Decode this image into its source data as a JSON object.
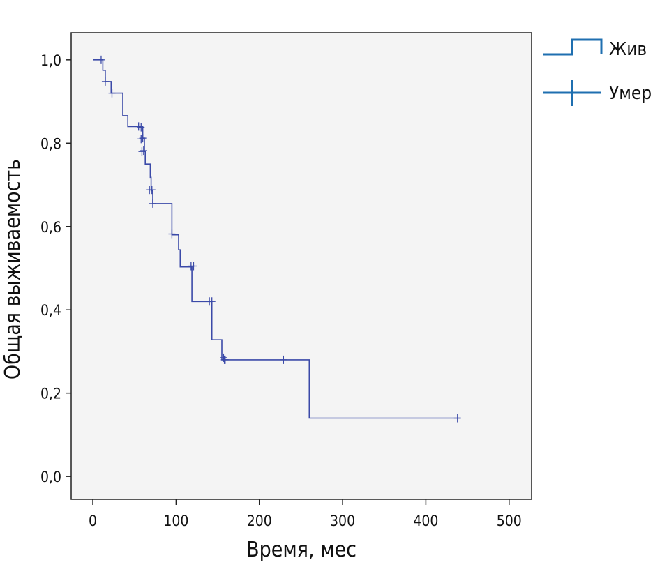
{
  "chart_data": {
    "type": "kaplan-meier",
    "title": "",
    "xlabel": "Время, мес",
    "ylabel": "Общая выживаемость",
    "xlim": [
      -26,
      527
    ],
    "ylim": [
      -0.055,
      1.065
    ],
    "xticks": [
      0,
      100,
      200,
      300,
      400,
      500
    ],
    "yticks": [
      0.0,
      0.2,
      0.4,
      0.6,
      0.8,
      1.0
    ],
    "xtick_labels": [
      "0",
      "100",
      "200",
      "300",
      "400",
      "500"
    ],
    "ytick_labels": [
      "0,0",
      "0,2",
      "0,4",
      "0,6",
      "0,8",
      "1,0"
    ],
    "grid": false,
    "legend_position": "top-right-outside",
    "series": [
      {
        "name": "Жив",
        "kind": "survival-step",
        "color": "#3b4aa8",
        "points": [
          [
            0,
            1.0
          ],
          [
            12,
            1.0
          ],
          [
            12,
            0.975
          ],
          [
            15,
            0.975
          ],
          [
            15,
            0.948
          ],
          [
            22,
            0.948
          ],
          [
            22,
            0.92
          ],
          [
            36,
            0.92
          ],
          [
            36,
            0.866
          ],
          [
            42,
            0.866
          ],
          [
            42,
            0.84
          ],
          [
            60,
            0.84
          ],
          [
            60,
            0.812
          ],
          [
            62,
            0.812
          ],
          [
            62,
            0.78
          ],
          [
            63,
            0.78
          ],
          [
            63,
            0.75
          ],
          [
            69,
            0.75
          ],
          [
            69,
            0.718
          ],
          [
            70,
            0.718
          ],
          [
            70,
            0.686
          ],
          [
            72,
            0.686
          ],
          [
            72,
            0.655
          ],
          [
            95,
            0.655
          ],
          [
            95,
            0.58
          ],
          [
            103,
            0.58
          ],
          [
            103,
            0.544
          ],
          [
            105,
            0.544
          ],
          [
            105,
            0.503
          ],
          [
            119,
            0.503
          ],
          [
            119,
            0.42
          ],
          [
            143,
            0.42
          ],
          [
            143,
            0.328
          ],
          [
            155,
            0.328
          ],
          [
            155,
            0.28
          ],
          [
            260,
            0.28
          ],
          [
            260,
            0.14
          ],
          [
            442,
            0.14
          ]
        ]
      },
      {
        "name": "Умер",
        "kind": "censored-marks",
        "color": "#3b4aa8",
        "points": [
          [
            10,
            1.0
          ],
          [
            15,
            0.948
          ],
          [
            23,
            0.92
          ],
          [
            55,
            0.84
          ],
          [
            58,
            0.838
          ],
          [
            58,
            0.81
          ],
          [
            60,
            0.812
          ],
          [
            59,
            0.78
          ],
          [
            61,
            0.782
          ],
          [
            68,
            0.688
          ],
          [
            71,
            0.688
          ],
          [
            72,
            0.655
          ],
          [
            95,
            0.582
          ],
          [
            118,
            0.505
          ],
          [
            121,
            0.505
          ],
          [
            140,
            0.42
          ],
          [
            143,
            0.42
          ],
          [
            157,
            0.285
          ],
          [
            158,
            0.28
          ],
          [
            159,
            0.28
          ],
          [
            229,
            0.28
          ],
          [
            438,
            0.14
          ]
        ]
      }
    ],
    "legend_entries": [
      "Жив",
      "Умер"
    ],
    "colors": {
      "plot_background": "#f4f4f4",
      "frame": "#222222",
      "legend_line": "#1f6fb0",
      "curve": "#3b4aa8"
    }
  }
}
